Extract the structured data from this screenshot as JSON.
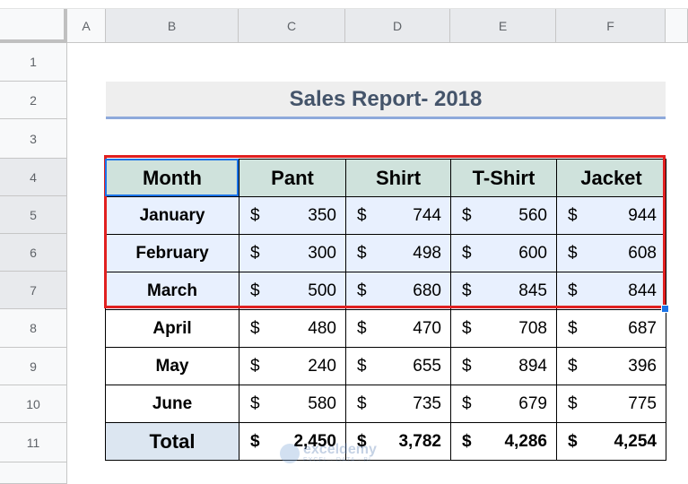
{
  "columns": [
    "A",
    "B",
    "C",
    "D",
    "E",
    "F"
  ],
  "rows": [
    "1",
    "2",
    "3",
    "4",
    "5",
    "6",
    "7",
    "8",
    "9",
    "10",
    "11"
  ],
  "title": "Sales Report- 2018",
  "table": {
    "headers": [
      "Month",
      "Pant",
      "Shirt",
      "T-Shirt",
      "Jacket"
    ],
    "currency": "$",
    "data": [
      {
        "month": "January",
        "values": [
          "350",
          "744",
          "560",
          "944"
        ]
      },
      {
        "month": "February",
        "values": [
          "300",
          "498",
          "600",
          "608"
        ]
      },
      {
        "month": "March",
        "values": [
          "500",
          "680",
          "845",
          "844"
        ]
      },
      {
        "month": "April",
        "values": [
          "480",
          "470",
          "708",
          "687"
        ]
      },
      {
        "month": "May",
        "values": [
          "240",
          "655",
          "894",
          "396"
        ]
      },
      {
        "month": "June",
        "values": [
          "580",
          "735",
          "679",
          "775"
        ]
      }
    ],
    "total": {
      "label": "Total",
      "values": [
        "2,450",
        "3,782",
        "4,286",
        "4,254"
      ]
    }
  },
  "watermark": {
    "name": "exceldemy",
    "tagline": "EXCEL · DATA · BI"
  }
}
